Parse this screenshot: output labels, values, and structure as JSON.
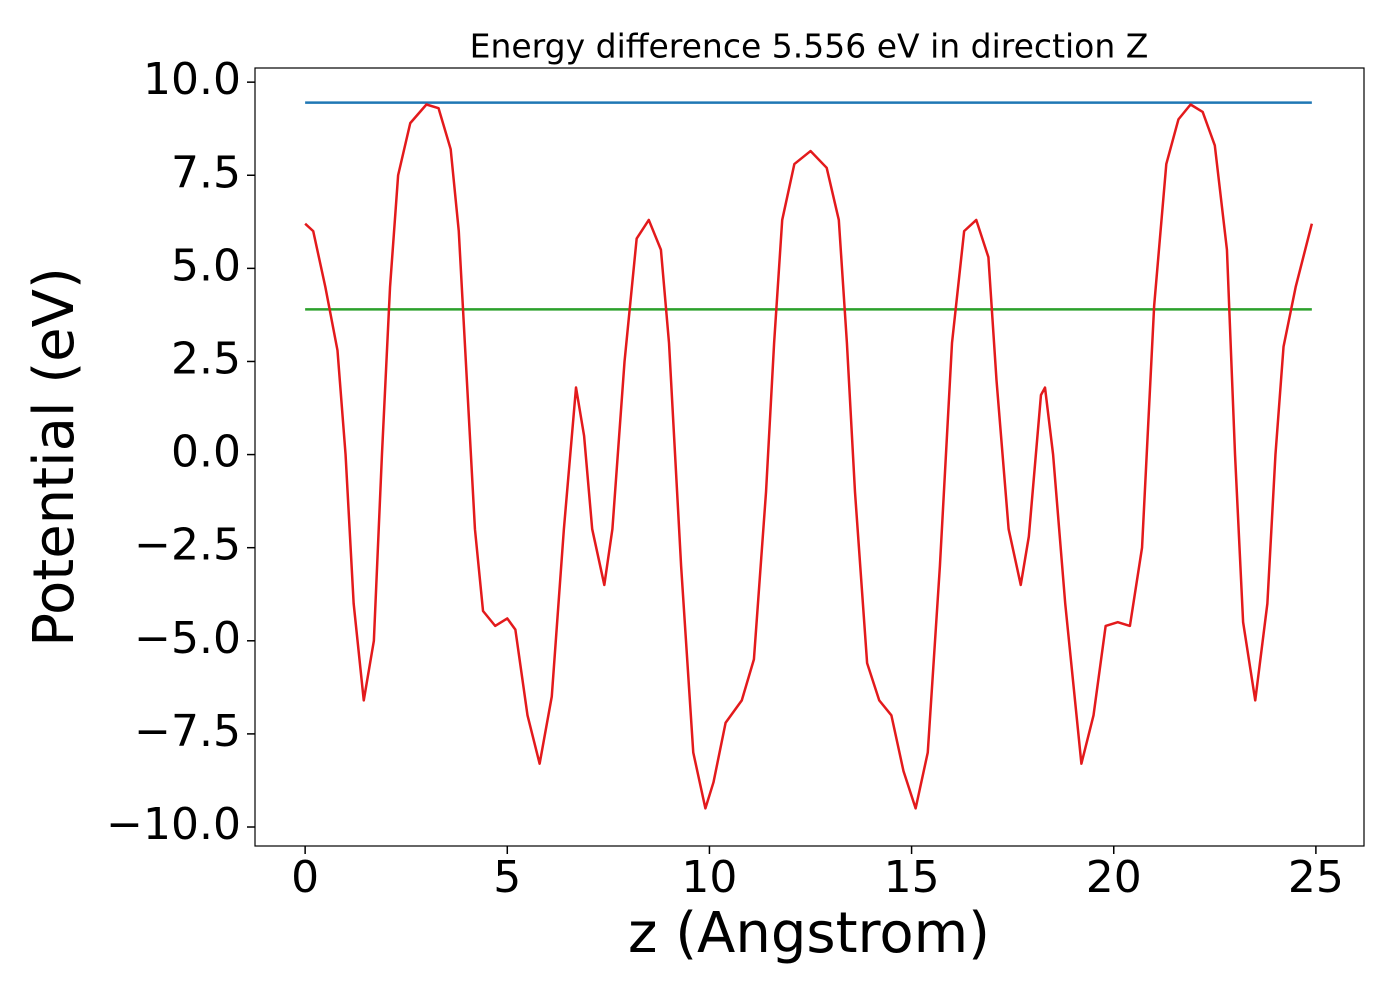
{
  "chart_data": {
    "type": "line",
    "title": "Energy difference 5.556 eV in direction Z",
    "xlabel": "z (Angstrom)",
    "ylabel": "Potential (eV)",
    "xlim": [
      -1.24,
      26.19
    ],
    "ylim": [
      -10.51,
      10.38
    ],
    "xticks": [
      0,
      5,
      10,
      15,
      20,
      25
    ],
    "yticks": [
      {
        "value": 10,
        "label": "10.0"
      },
      {
        "value": 7.5,
        "label": "7.5"
      },
      {
        "value": 5,
        "label": "5.0"
      },
      {
        "value": 2.5,
        "label": "2.5"
      },
      {
        "value": 0,
        "label": "0.0"
      },
      {
        "value": -2.5,
        "label": "−2.5"
      },
      {
        "value": -5,
        "label": "−5.0"
      },
      {
        "value": -7.5,
        "label": "−7.5"
      },
      {
        "value": -10,
        "label": "−10.0"
      }
    ],
    "series": [
      {
        "color": "#1f77b4",
        "x": [
          0,
          24.9
        ],
        "values": [
          9.45,
          9.45
        ]
      },
      {
        "color": "#2ca02c",
        "x": [
          0,
          24.9
        ],
        "values": [
          3.9,
          3.9
        ]
      },
      {
        "color": "#e31a1c",
        "x": [
          0,
          0.2,
          0.5,
          0.8,
          1.0,
          1.2,
          1.45,
          1.7,
          1.9,
          2.1,
          2.3,
          2.6,
          3.0,
          3.3,
          3.6,
          3.8,
          4.0,
          4.2,
          4.4,
          4.7,
          5.0,
          5.2,
          5.5,
          5.8,
          6.1,
          6.4,
          6.7,
          6.9,
          7.1,
          7.4,
          7.6,
          7.9,
          8.2,
          8.5,
          8.8,
          9.0,
          9.3,
          9.6,
          9.9,
          10.1,
          10.4,
          10.8,
          11.1,
          11.4,
          11.6,
          11.8,
          12.1,
          12.5,
          12.9,
          13.2,
          13.4,
          13.6,
          13.9,
          14.2,
          14.5,
          14.8,
          15.1,
          15.4,
          15.7,
          16.0,
          16.3,
          16.6,
          16.9,
          17.1,
          17.4,
          17.7,
          17.9,
          18.2,
          18.3,
          18.5,
          18.8,
          19.2,
          19.5,
          19.8,
          20.1,
          20.4,
          20.7,
          21.0,
          21.3,
          21.6,
          21.9,
          22.2,
          22.5,
          22.8,
          23.0,
          23.2,
          23.5,
          23.8,
          24.0,
          24.2,
          24.5,
          24.9
        ],
        "values": [
          6.2,
          6.0,
          4.5,
          2.8,
          0,
          -4,
          -6.6,
          -5,
          0,
          4.5,
          7.5,
          8.9,
          9.4,
          9.3,
          8.2,
          6,
          2,
          -2,
          -4.2,
          -4.6,
          -4.4,
          -4.7,
          -7,
          -8.3,
          -6.5,
          -2,
          1.8,
          0.5,
          -2,
          -3.5,
          -2,
          2.5,
          5.8,
          6.3,
          5.5,
          3,
          -3,
          -8,
          -9.5,
          -8.8,
          -7.2,
          -6.6,
          -5.5,
          -1,
          3,
          6.3,
          7.8,
          8.15,
          7.7,
          6.3,
          3,
          -1,
          -5.6,
          -6.6,
          -7,
          -8.5,
          -9.5,
          -8,
          -3,
          3,
          6,
          6.3,
          5.3,
          2,
          -2,
          -3.5,
          -2.2,
          1.6,
          1.8,
          0,
          -4,
          -8.3,
          -7,
          -4.6,
          -4.5,
          -4.6,
          -2.5,
          4,
          7.8,
          9,
          9.4,
          9.2,
          8.3,
          5.5,
          0,
          -4.5,
          -6.6,
          -4,
          0,
          2.9,
          4.5,
          6.2
        ]
      }
    ]
  }
}
